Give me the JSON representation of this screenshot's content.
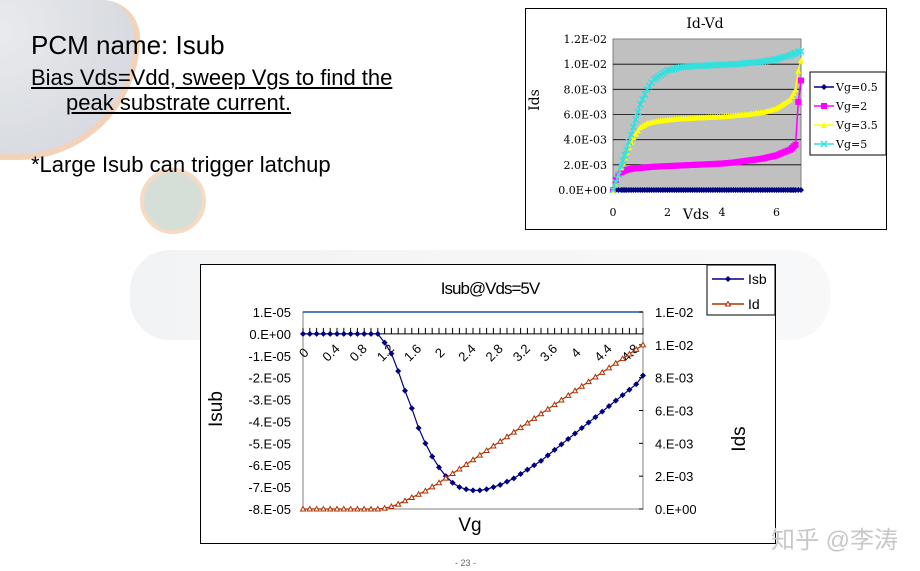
{
  "slide": {
    "title": "PCM name: Isub",
    "bias_line1": "Bias Vds=Vdd, sweep Vgs to find the",
    "bias_line2": "peak substrate current.",
    "note": "*Large Isub can trigger latchup",
    "watermark": "知乎 @李涛",
    "page_number": "- 23 -"
  },
  "chart_data": [
    {
      "type": "line",
      "title": "Id-Vd",
      "xlabel": "Vds",
      "ylabel": "Ids",
      "xlim": [
        0,
        7
      ],
      "ylim": [
        0,
        0.012
      ],
      "x_ticks": [
        "0",
        "2",
        "4",
        "6"
      ],
      "x_tick_values": [
        0,
        2,
        4,
        6
      ],
      "y_ticks": [
        "0.0E+00",
        "2.0E-03",
        "4.0E-03",
        "6.0E-03",
        "8.0E-03",
        "1.0E-02",
        "1.2E-02"
      ],
      "y_tick_values": [
        0,
        0.002,
        0.004,
        0.006,
        0.008,
        0.01,
        0.012
      ],
      "grid": true,
      "plot_background": "#c0c0c0",
      "legend_position": "right",
      "x": [
        0,
        0.1,
        0.2,
        0.3,
        0.5,
        0.75,
        1,
        1.25,
        1.5,
        2,
        2.5,
        3,
        3.5,
        4,
        4.5,
        5,
        5.5,
        6,
        6.5,
        6.7,
        6.8,
        6.9
      ],
      "series": [
        {
          "name": "Vg=0.5",
          "color": "#000080",
          "marker": "diamond",
          "values": [
            0,
            0,
            0,
            0,
            0,
            0,
            0,
            0,
            0,
            0,
            0,
            0,
            0,
            0,
            0,
            0,
            0,
            0,
            0,
            0,
            0,
            0
          ]
        },
        {
          "name": "Vg=2",
          "color": "#ff00ff",
          "marker": "square",
          "values": [
            0,
            0.0008,
            0.0012,
            0.0014,
            0.0016,
            0.0017,
            0.00175,
            0.0018,
            0.00185,
            0.0019,
            0.00195,
            0.002,
            0.00205,
            0.0021,
            0.0022,
            0.00235,
            0.0025,
            0.00275,
            0.0032,
            0.0036,
            0.007,
            0.0087
          ]
        },
        {
          "name": "Vg=3.5",
          "color": "#ffff00",
          "marker": "triangle",
          "values": [
            0,
            0.0006,
            0.0012,
            0.0018,
            0.003,
            0.0042,
            0.005,
            0.0053,
            0.00545,
            0.0056,
            0.0057,
            0.00575,
            0.0058,
            0.00585,
            0.00595,
            0.00605,
            0.0062,
            0.0065,
            0.0072,
            0.008,
            0.0095,
            0.0103
          ]
        },
        {
          "name": "Vg=5",
          "color": "#33e0e0",
          "marker": "x",
          "values": [
            0,
            0.0006,
            0.0012,
            0.0019,
            0.0032,
            0.005,
            0.0068,
            0.008,
            0.0088,
            0.0095,
            0.00975,
            0.00985,
            0.0099,
            0.00995,
            0.01,
            0.0101,
            0.0102,
            0.0104,
            0.0107,
            0.0109,
            0.011,
            0.011
          ]
        }
      ]
    },
    {
      "type": "line",
      "title": "Isub@Vds=5V",
      "xlabel": "Vg",
      "ylabel": "Isub",
      "y2label": "Ids",
      "xlim": [
        0,
        5
      ],
      "ylim": [
        -8e-05,
        1e-05
      ],
      "y2lim": [
        0,
        0.012
      ],
      "x_ticks": [
        "0",
        "0.4",
        "0.8",
        "1.2",
        "1.6",
        "2",
        "2.4",
        "2.8",
        "3.2",
        "3.6",
        "4",
        "4.4",
        "4.8"
      ],
      "x_tick_values": [
        0,
        0.4,
        0.8,
        1.2,
        1.6,
        2,
        2.4,
        2.8,
        3.2,
        3.6,
        4,
        4.4,
        4.8
      ],
      "y_ticks": [
        "1.E-05",
        "0.E+00",
        "-1.E-05",
        "-2.E-05",
        "-3.E-05",
        "-4.E-05",
        "-5.E-05",
        "-6.E-05",
        "-7.E-05",
        "-8.E-05"
      ],
      "y_tick_values": [
        1e-05,
        0,
        -1e-05,
        -2e-05,
        -3e-05,
        -4e-05,
        -5e-05,
        -6e-05,
        -7e-05,
        -8e-05
      ],
      "y2_ticks": [
        "0.E+00",
        "2.E-03",
        "4.E-03",
        "6.E-03",
        "8.E-03",
        "1.E-02",
        "1.E-02"
      ],
      "y2_tick_values": [
        0,
        0.002,
        0.004,
        0.006,
        0.008,
        0.01,
        0.012
      ],
      "grid": false,
      "legend_position": "top-right",
      "x": [
        0,
        0.1,
        0.2,
        0.3,
        0.4,
        0.5,
        0.6,
        0.7,
        0.8,
        0.9,
        1.0,
        1.1,
        1.2,
        1.3,
        1.4,
        1.5,
        1.6,
        1.7,
        1.8,
        1.9,
        2.0,
        2.1,
        2.2,
        2.3,
        2.4,
        2.5,
        2.6,
        2.7,
        2.8,
        2.9,
        3.0,
        3.1,
        3.2,
        3.3,
        3.4,
        3.5,
        3.6,
        3.7,
        3.8,
        3.9,
        4.0,
        4.1,
        4.2,
        4.3,
        4.4,
        4.5,
        4.6,
        4.7,
        4.8,
        4.9,
        5.0
      ],
      "series": [
        {
          "name": "Isb",
          "axis": "left",
          "color": "#000080",
          "marker": "diamond",
          "values": [
            0,
            0,
            0,
            0,
            0,
            0,
            0,
            0,
            0,
            0,
            0,
            0,
            -4e-06,
            -9e-06,
            -1.7e-05,
            -2.6e-05,
            -3.4e-05,
            -4.3e-05,
            -5e-05,
            -5.6e-05,
            -6.1e-05,
            -6.5e-05,
            -6.8e-05,
            -7e-05,
            -7.1e-05,
            -7.15e-05,
            -7.15e-05,
            -7.1e-05,
            -7e-05,
            -6.9e-05,
            -6.75e-05,
            -6.6e-05,
            -6.4e-05,
            -6.2e-05,
            -6e-05,
            -5.8e-05,
            -5.55e-05,
            -5.3e-05,
            -5.05e-05,
            -4.8e-05,
            -4.55e-05,
            -4.3e-05,
            -4.05e-05,
            -3.8e-05,
            -3.55e-05,
            -3.3e-05,
            -3.05e-05,
            -2.8e-05,
            -2.55e-05,
            -2.3e-05,
            -1.9e-05
          ]
        },
        {
          "name": "Id",
          "axis": "right",
          "color": "#b03000",
          "marker": "triangle-open",
          "values": [
            0,
            0,
            0,
            0,
            0,
            0,
            0,
            0,
            0,
            0,
            0,
            0,
            5e-05,
            0.00015,
            0.0003,
            0.0005,
            0.0007,
            0.0009,
            0.0011,
            0.00135,
            0.0016,
            0.00188,
            0.00216,
            0.00244,
            0.00272,
            0.003,
            0.00328,
            0.00356,
            0.00384,
            0.00412,
            0.0044,
            0.00468,
            0.00496,
            0.00524,
            0.00552,
            0.0058,
            0.00608,
            0.00636,
            0.00664,
            0.00692,
            0.0072,
            0.00748,
            0.00776,
            0.00804,
            0.00832,
            0.0086,
            0.00888,
            0.00916,
            0.00944,
            0.00972,
            0.01
          ]
        }
      ]
    }
  ]
}
